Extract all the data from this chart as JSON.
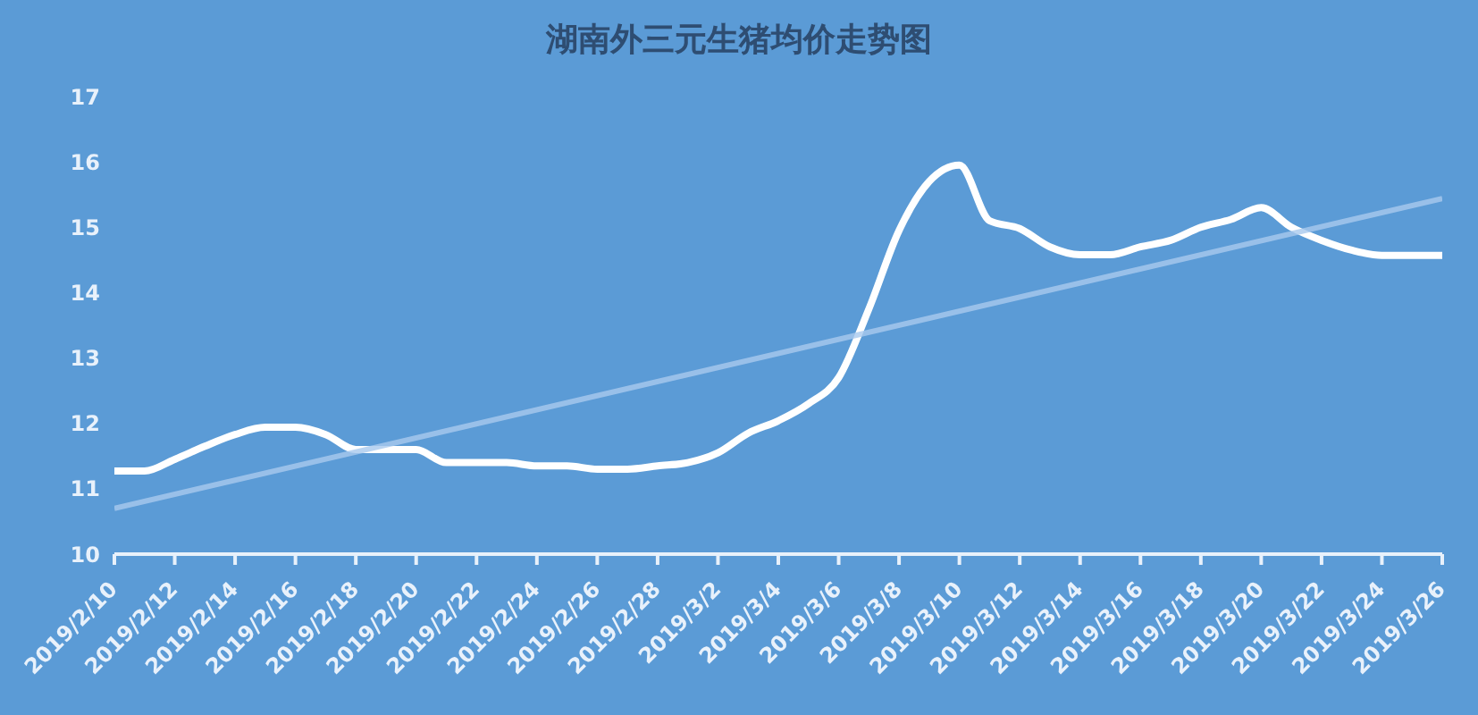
{
  "chart_data": {
    "type": "line",
    "title": "湖南外三元生猪均价走势图",
    "x": [
      "2019-02-10",
      "2019-02-11",
      "2019-02-12",
      "2019-02-13",
      "2019-02-14",
      "2019-02-15",
      "2019-02-16",
      "2019-02-17",
      "2019-02-18",
      "2019-02-19",
      "2019-02-20",
      "2019-02-21",
      "2019-02-22",
      "2019-02-23",
      "2019-02-24",
      "2019-02-25",
      "2019-02-26",
      "2019-02-27",
      "2019-02-28",
      "2019-03-01",
      "2019-03-02",
      "2019-03-03",
      "2019-03-04",
      "2019-03-05",
      "2019-03-06",
      "2019-03-07",
      "2019-03-08",
      "2019-03-09",
      "2019-03-10",
      "2019-03-11",
      "2019-03-12",
      "2019-03-13",
      "2019-03-14",
      "2019-03-15",
      "2019-03-16",
      "2019-03-17",
      "2019-03-18",
      "2019-03-19",
      "2019-03-20",
      "2019-03-21",
      "2019-03-22",
      "2019-03-23",
      "2019-03-24",
      "2019-03-25",
      "2019-03-26"
    ],
    "series": [
      {
        "color": "#ffffff",
        "values": [
          11.27,
          11.27,
          11.45,
          11.65,
          11.83,
          11.94,
          11.94,
          11.83,
          11.6,
          11.6,
          11.6,
          11.4,
          11.4,
          11.4,
          11.35,
          11.35,
          11.3,
          11.3,
          11.35,
          11.4,
          11.55,
          11.85,
          12.04,
          12.3,
          12.7,
          13.75,
          14.95,
          15.7,
          15.95,
          15.1,
          14.98,
          14.7,
          14.58,
          14.58,
          14.7,
          14.8,
          15.0,
          15.12,
          15.3,
          15.0,
          14.8,
          14.65,
          14.57,
          14.57,
          14.57
        ]
      },
      {
        "type": "line",
        "color": "#a9c9ee",
        "x": [
          "2019-02-10",
          "2019-03-26"
        ],
        "values": [
          10.7,
          15.44
        ]
      }
    ],
    "xlim": [
      "2019-02-10",
      "2019-03-26"
    ],
    "xticks": [
      {
        "value": "2019-02-10",
        "label": "2019/2/10"
      },
      {
        "value": "2019-02-12",
        "label": "2019/2/12"
      },
      {
        "value": "2019-02-14",
        "label": "2019/2/14"
      },
      {
        "value": "2019-02-16",
        "label": "2019/2/16"
      },
      {
        "value": "2019-02-18",
        "label": "2019/2/18"
      },
      {
        "value": "2019-02-20",
        "label": "2019/2/20"
      },
      {
        "value": "2019-02-22",
        "label": "2019/2/22"
      },
      {
        "value": "2019-02-24",
        "label": "2019/2/24"
      },
      {
        "value": "2019-02-26",
        "label": "2019/2/26"
      },
      {
        "value": "2019-02-28",
        "label": "2019/2/28"
      },
      {
        "value": "2019-03-02",
        "label": "2019/3/2"
      },
      {
        "value": "2019-03-04",
        "label": "2019/3/4"
      },
      {
        "value": "2019-03-06",
        "label": "2019/3/6"
      },
      {
        "value": "2019-03-08",
        "label": "2019/3/8"
      },
      {
        "value": "2019-03-10",
        "label": "2019/3/10"
      },
      {
        "value": "2019-03-12",
        "label": "2019/3/12"
      },
      {
        "value": "2019-03-14",
        "label": "2019/3/14"
      },
      {
        "value": "2019-03-16",
        "label": "2019/3/16"
      },
      {
        "value": "2019-03-18",
        "label": "2019/3/18"
      },
      {
        "value": "2019-03-20",
        "label": "2019/3/20"
      },
      {
        "value": "2019-03-22",
        "label": "2019/3/22"
      },
      {
        "value": "2019-03-24",
        "label": "2019/3/24"
      },
      {
        "value": "2019-03-26",
        "label": "2019/3/26"
      }
    ],
    "ylim": [
      10,
      17
    ],
    "yticks": [
      10,
      11,
      12,
      13,
      14,
      15,
      16,
      17
    ],
    "marker": "none",
    "line_style": "solid"
  }
}
